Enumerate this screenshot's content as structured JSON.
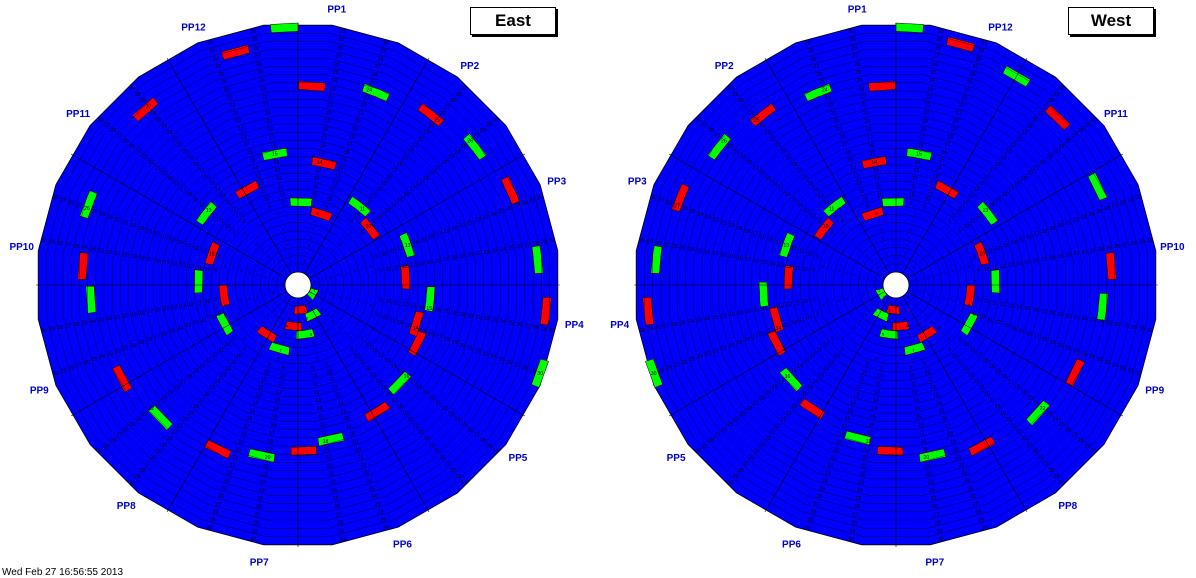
{
  "colors": {
    "background_sector": "#0000ff",
    "highlight_red": "#ff0000",
    "highlight_green": "#00ff00",
    "grid_line": "#000000",
    "label": "#0000cc"
  },
  "footer": "Wed Feb 27 16:56:55 2013",
  "wheels": [
    {
      "title": "East",
      "labels": [
        {
          "text": "PP1",
          "angle": 82
        },
        {
          "text": "PP2",
          "angle": 52
        },
        {
          "text": "PP3",
          "angle": 22
        },
        {
          "text": "PP4",
          "angle": -8
        },
        {
          "text": "PP5",
          "angle": -38
        },
        {
          "text": "PP6",
          "angle": -68
        },
        {
          "text": "PP7",
          "angle": -98
        },
        {
          "text": "PP8",
          "angle": -128
        },
        {
          "text": "PP9",
          "angle": -158
        },
        {
          "text": "PP10",
          "angle": 172
        },
        {
          "text": "PP11",
          "angle": 142
        },
        {
          "text": "PP12",
          "angle": 112
        }
      ],
      "highlights": [
        {
          "row": 30,
          "angle": 93,
          "color": "green"
        },
        {
          "row": 28,
          "angle": 105,
          "color": "red"
        },
        {
          "row": 27,
          "angle": 131,
          "color": "red"
        },
        {
          "row": 26,
          "angle": 159,
          "color": "green"
        },
        {
          "row": 25,
          "angle": 175,
          "color": "red"
        },
        {
          "row": 24,
          "angle": -176,
          "color": "green"
        },
        {
          "row": 23,
          "angle": -152,
          "color": "red"
        },
        {
          "row": 22,
          "angle": -136,
          "color": "green"
        },
        {
          "row": 21,
          "angle": -116,
          "color": "red"
        },
        {
          "row": 20,
          "angle": -102,
          "color": "green"
        },
        {
          "row": 19,
          "angle": -88,
          "color": "red"
        },
        {
          "row": 18,
          "angle": -78,
          "color": "green"
        },
        {
          "row": 17,
          "angle": -58,
          "color": "red"
        },
        {
          "row": 16,
          "angle": -44,
          "color": "green"
        },
        {
          "row": 15,
          "angle": -26,
          "color": "red"
        },
        {
          "row": 15,
          "angle": -6,
          "color": "green"
        },
        {
          "row": 14,
          "angle": -18,
          "color": "red"
        },
        {
          "row": 23,
          "angle": 86,
          "color": "red"
        },
        {
          "row": 24,
          "angle": 68,
          "color": "green"
        },
        {
          "row": 25,
          "angle": 52,
          "color": "red"
        },
        {
          "row": 26,
          "angle": 38,
          "color": "green"
        },
        {
          "row": 27,
          "angle": 24,
          "color": "red"
        },
        {
          "row": 28,
          "angle": 6,
          "color": "green"
        },
        {
          "row": 29,
          "angle": -6,
          "color": "red"
        },
        {
          "row": 30,
          "angle": -20,
          "color": "green"
        },
        {
          "row": 14,
          "angle": 78,
          "color": "red"
        },
        {
          "row": 15,
          "angle": 100,
          "color": "green"
        },
        {
          "row": 12,
          "angle": 118,
          "color": "red"
        },
        {
          "row": 13,
          "angle": 142,
          "color": "green"
        },
        {
          "row": 10,
          "angle": 160,
          "color": "red"
        },
        {
          "row": 11,
          "angle": 178,
          "color": "green"
        },
        {
          "row": 9,
          "angle": 88,
          "color": "green"
        },
        {
          "row": 8,
          "angle": 72,
          "color": "red"
        },
        {
          "row": 11,
          "angle": 52,
          "color": "green"
        },
        {
          "row": 10,
          "angle": 38,
          "color": "red"
        },
        {
          "row": 13,
          "angle": 20,
          "color": "green"
        },
        {
          "row": 12,
          "angle": 4,
          "color": "red"
        },
        {
          "row": 8,
          "angle": -172,
          "color": "red"
        },
        {
          "row": 9,
          "angle": -152,
          "color": "green"
        },
        {
          "row": 6,
          "angle": -122,
          "color": "red"
        },
        {
          "row": 7,
          "angle": -106,
          "color": "green"
        },
        {
          "row": 4,
          "angle": -96,
          "color": "red"
        },
        {
          "row": 2,
          "angle": -84,
          "color": "red"
        },
        {
          "row": 5,
          "angle": -82,
          "color": "green"
        },
        {
          "row": 3,
          "angle": -64,
          "color": "green"
        },
        {
          "row": 1,
          "angle": -30,
          "color": "green"
        }
      ]
    },
    {
      "title": "West",
      "labels": [
        {
          "text": "PP1",
          "angle": 98
        },
        {
          "text": "PP2",
          "angle": 128
        },
        {
          "text": "PP3",
          "angle": 158
        },
        {
          "text": "PP4",
          "angle": -172
        },
        {
          "text": "PP5",
          "angle": -142
        },
        {
          "text": "PP6",
          "angle": -112
        },
        {
          "text": "PP7",
          "angle": -82
        },
        {
          "text": "PP8",
          "angle": -52
        },
        {
          "text": "PP9",
          "angle": -22
        },
        {
          "text": "PP10",
          "angle": 8
        },
        {
          "text": "PP11",
          "angle": 38
        },
        {
          "text": "PP12",
          "angle": 68
        }
      ],
      "highlights": [
        {
          "row": 30,
          "angle": 87,
          "color": "green"
        },
        {
          "row": 29,
          "angle": 75,
          "color": "red"
        },
        {
          "row": 28,
          "angle": 60,
          "color": "green"
        },
        {
          "row": 27,
          "angle": 46,
          "color": "red"
        },
        {
          "row": 26,
          "angle": 26,
          "color": "green"
        },
        {
          "row": 25,
          "angle": 5,
          "color": "red"
        },
        {
          "row": 24,
          "angle": -6,
          "color": "green"
        },
        {
          "row": 23,
          "angle": -26,
          "color": "red"
        },
        {
          "row": 22,
          "angle": -42,
          "color": "green"
        },
        {
          "row": 21,
          "angle": -62,
          "color": "red"
        },
        {
          "row": 20,
          "angle": -78,
          "color": "green"
        },
        {
          "row": 19,
          "angle": -92,
          "color": "red"
        },
        {
          "row": 18,
          "angle": -104,
          "color": "green"
        },
        {
          "row": 17,
          "angle": -124,
          "color": "red"
        },
        {
          "row": 16,
          "angle": -138,
          "color": "green"
        },
        {
          "row": 15,
          "angle": -154,
          "color": "red"
        },
        {
          "row": 15,
          "angle": -176,
          "color": "green"
        },
        {
          "row": 14,
          "angle": -164,
          "color": "red"
        },
        {
          "row": 23,
          "angle": 94,
          "color": "red"
        },
        {
          "row": 24,
          "angle": 112,
          "color": "green"
        },
        {
          "row": 25,
          "angle": 128,
          "color": "red"
        },
        {
          "row": 26,
          "angle": 142,
          "color": "green"
        },
        {
          "row": 27,
          "angle": 158,
          "color": "red"
        },
        {
          "row": 28,
          "angle": 174,
          "color": "green"
        },
        {
          "row": 29,
          "angle": -174,
          "color": "red"
        },
        {
          "row": 30,
          "angle": -160,
          "color": "green"
        },
        {
          "row": 14,
          "angle": 100,
          "color": "red"
        },
        {
          "row": 15,
          "angle": 80,
          "color": "green"
        },
        {
          "row": 12,
          "angle": 62,
          "color": "red"
        },
        {
          "row": 13,
          "angle": 38,
          "color": "green"
        },
        {
          "row": 10,
          "angle": 20,
          "color": "red"
        },
        {
          "row": 11,
          "angle": 2,
          "color": "green"
        },
        {
          "row": 9,
          "angle": 92,
          "color": "green"
        },
        {
          "row": 8,
          "angle": 108,
          "color": "red"
        },
        {
          "row": 11,
          "angle": 128,
          "color": "green"
        },
        {
          "row": 10,
          "angle": 142,
          "color": "red"
        },
        {
          "row": 13,
          "angle": 160,
          "color": "green"
        },
        {
          "row": 12,
          "angle": 176,
          "color": "red"
        },
        {
          "row": 8,
          "angle": -8,
          "color": "red"
        },
        {
          "row": 9,
          "angle": -28,
          "color": "green"
        },
        {
          "row": 6,
          "angle": -58,
          "color": "red"
        },
        {
          "row": 7,
          "angle": -74,
          "color": "green"
        },
        {
          "row": 4,
          "angle": -84,
          "color": "red"
        },
        {
          "row": 2,
          "angle": -96,
          "color": "red"
        },
        {
          "row": 5,
          "angle": -98,
          "color": "green"
        },
        {
          "row": 3,
          "angle": -116,
          "color": "green"
        },
        {
          "row": 1,
          "angle": -150,
          "color": "green"
        }
      ]
    }
  ]
}
